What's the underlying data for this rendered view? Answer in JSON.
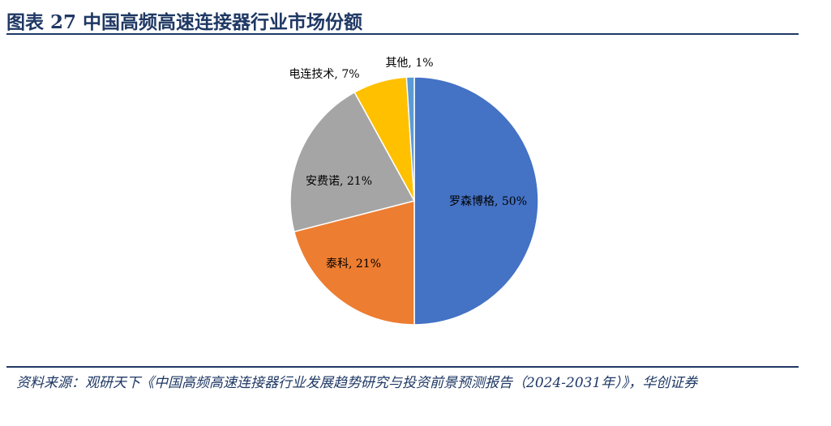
{
  "figure": {
    "title": "图表 27    中国高频高速连接器行业市场份额",
    "source": "资料来源：观研天下《中国高频高速连接器行业发展趋势研究与投资前景预测报告（2024-2031年）》，华创证券"
  },
  "chart_data": {
    "type": "pie",
    "categories": [
      "罗森博格",
      "泰科",
      "安费诺",
      "电连技术",
      "其他"
    ],
    "values": [
      50,
      21,
      21,
      7,
      1
    ],
    "labels": [
      "罗森博格, 50%",
      "泰科, 21%",
      "安费诺, 21%",
      "电连技术, 7%",
      "其他, 1%"
    ],
    "colors": [
      "#4472c4",
      "#ed7d31",
      "#a5a5a5",
      "#ffc000",
      "#5b9bd5"
    ],
    "unit": "%",
    "start_angle": "12 o'clock, clockwise"
  }
}
